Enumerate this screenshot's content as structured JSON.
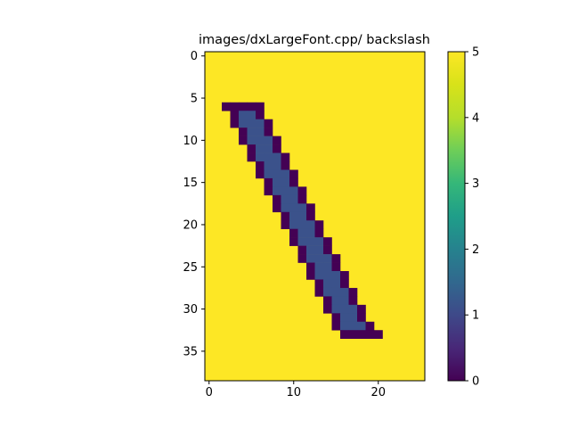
{
  "chart_data": {
    "type": "heatmap",
    "title": "images/dxLargeFont.cpp/ backslash",
    "xlabel": "",
    "ylabel": "",
    "grid": false,
    "colorbar": {
      "position": "right",
      "colormap": "viridis",
      "range": [
        0,
        5
      ],
      "tick_labels": [
        "0",
        "1",
        "2",
        "3",
        "4",
        "5"
      ]
    },
    "x_ticks": [
      "0",
      "10",
      "20"
    ],
    "y_ticks": [
      "0",
      "5",
      "10",
      "15",
      "20",
      "25",
      "30",
      "35"
    ],
    "xlim": [
      -0.5,
      25.5
    ],
    "ylim": [
      38.5,
      -0.5
    ],
    "ncols": 26,
    "nrows": 39,
    "background_value": 5,
    "glyph_rows": [
      {
        "row": 6,
        "cells": [
          [
            2,
            0
          ],
          [
            3,
            0
          ],
          [
            4,
            0
          ],
          [
            5,
            0
          ],
          [
            6,
            0
          ]
        ]
      },
      {
        "row": 7,
        "cells": [
          [
            3,
            0
          ],
          [
            4,
            1
          ],
          [
            5,
            1
          ],
          [
            6,
            0
          ]
        ]
      },
      {
        "row": 8,
        "cells": [
          [
            3,
            0
          ],
          [
            4,
            1
          ],
          [
            5,
            1
          ],
          [
            6,
            1
          ],
          [
            7,
            0
          ]
        ]
      },
      {
        "row": 9,
        "cells": [
          [
            4,
            0
          ],
          [
            5,
            1
          ],
          [
            6,
            1
          ],
          [
            7,
            0
          ]
        ]
      },
      {
        "row": 10,
        "cells": [
          [
            4,
            0
          ],
          [
            5,
            1
          ],
          [
            6,
            1
          ],
          [
            7,
            1
          ],
          [
            8,
            0
          ]
        ]
      },
      {
        "row": 11,
        "cells": [
          [
            5,
            0
          ],
          [
            6,
            1
          ],
          [
            7,
            1
          ],
          [
            8,
            0
          ]
        ]
      },
      {
        "row": 12,
        "cells": [
          [
            5,
            0
          ],
          [
            6,
            1
          ],
          [
            7,
            1
          ],
          [
            8,
            1
          ],
          [
            9,
            0
          ]
        ]
      },
      {
        "row": 13,
        "cells": [
          [
            6,
            0
          ],
          [
            7,
            1
          ],
          [
            8,
            1
          ],
          [
            9,
            0
          ]
        ]
      },
      {
        "row": 14,
        "cells": [
          [
            6,
            0
          ],
          [
            7,
            1
          ],
          [
            8,
            1
          ],
          [
            9,
            1
          ],
          [
            10,
            0
          ]
        ]
      },
      {
        "row": 15,
        "cells": [
          [
            7,
            0
          ],
          [
            8,
            1
          ],
          [
            9,
            1
          ],
          [
            10,
            0
          ]
        ]
      },
      {
        "row": 16,
        "cells": [
          [
            7,
            0
          ],
          [
            8,
            1
          ],
          [
            9,
            1
          ],
          [
            10,
            1
          ],
          [
            11,
            0
          ]
        ]
      },
      {
        "row": 17,
        "cells": [
          [
            8,
            0
          ],
          [
            9,
            1
          ],
          [
            10,
            1
          ],
          [
            11,
            0
          ]
        ]
      },
      {
        "row": 18,
        "cells": [
          [
            8,
            0
          ],
          [
            9,
            1
          ],
          [
            10,
            1
          ],
          [
            11,
            1
          ],
          [
            12,
            0
          ]
        ]
      },
      {
        "row": 19,
        "cells": [
          [
            9,
            0
          ],
          [
            10,
            1
          ],
          [
            11,
            1
          ],
          [
            12,
            0
          ]
        ]
      },
      {
        "row": 20,
        "cells": [
          [
            9,
            0
          ],
          [
            10,
            1
          ],
          [
            11,
            1
          ],
          [
            12,
            1
          ],
          [
            13,
            0
          ]
        ]
      },
      {
        "row": 21,
        "cells": [
          [
            10,
            0
          ],
          [
            11,
            1
          ],
          [
            12,
            1
          ],
          [
            13,
            0
          ]
        ]
      },
      {
        "row": 22,
        "cells": [
          [
            10,
            0
          ],
          [
            11,
            1
          ],
          [
            12,
            1
          ],
          [
            13,
            1
          ],
          [
            14,
            0
          ]
        ]
      },
      {
        "row": 23,
        "cells": [
          [
            11,
            0
          ],
          [
            12,
            1
          ],
          [
            13,
            1
          ],
          [
            14,
            0
          ]
        ]
      },
      {
        "row": 24,
        "cells": [
          [
            11,
            0
          ],
          [
            12,
            1
          ],
          [
            13,
            1
          ],
          [
            14,
            1
          ],
          [
            15,
            0
          ]
        ]
      },
      {
        "row": 25,
        "cells": [
          [
            12,
            0
          ],
          [
            13,
            1
          ],
          [
            14,
            1
          ],
          [
            15,
            0
          ]
        ]
      },
      {
        "row": 26,
        "cells": [
          [
            12,
            0
          ],
          [
            13,
            1
          ],
          [
            14,
            1
          ],
          [
            15,
            1
          ],
          [
            16,
            0
          ]
        ]
      },
      {
        "row": 27,
        "cells": [
          [
            13,
            0
          ],
          [
            14,
            1
          ],
          [
            15,
            1
          ],
          [
            16,
            0
          ]
        ]
      },
      {
        "row": 28,
        "cells": [
          [
            13,
            0
          ],
          [
            14,
            1
          ],
          [
            15,
            1
          ],
          [
            16,
            1
          ],
          [
            17,
            0
          ]
        ]
      },
      {
        "row": 29,
        "cells": [
          [
            14,
            0
          ],
          [
            15,
            1
          ],
          [
            16,
            1
          ],
          [
            17,
            0
          ]
        ]
      },
      {
        "row": 30,
        "cells": [
          [
            14,
            0
          ],
          [
            15,
            1
          ],
          [
            16,
            1
          ],
          [
            17,
            1
          ],
          [
            18,
            0
          ]
        ]
      },
      {
        "row": 31,
        "cells": [
          [
            15,
            0
          ],
          [
            16,
            1
          ],
          [
            17,
            1
          ],
          [
            18,
            0
          ]
        ]
      },
      {
        "row": 32,
        "cells": [
          [
            15,
            0
          ],
          [
            16,
            1
          ],
          [
            17,
            1
          ],
          [
            18,
            1
          ],
          [
            19,
            0
          ]
        ]
      },
      {
        "row": 33,
        "cells": [
          [
            16,
            0
          ],
          [
            17,
            0
          ],
          [
            18,
            0
          ],
          [
            19,
            0
          ],
          [
            20,
            0
          ]
        ]
      }
    ],
    "colors": {
      "value_0": "#440154",
      "value_1": "#3b528b",
      "value_5": "#fde725"
    }
  }
}
